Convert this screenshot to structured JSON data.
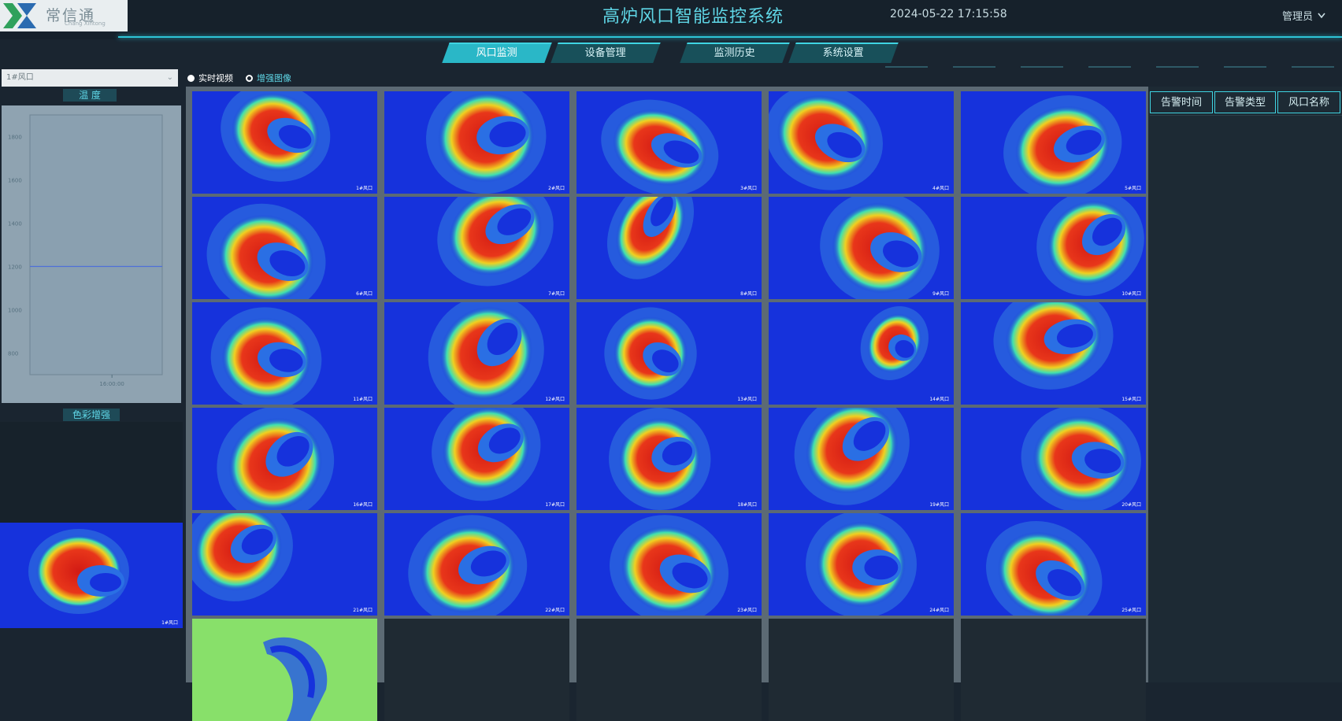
{
  "app": {
    "logo_text": "常信通",
    "logo_subtext": "Chang Xintong",
    "title": "高炉风口智能监控系统",
    "datetime": "2024-05-22 17:15:58",
    "user": "管理员"
  },
  "nav": {
    "tabs": [
      {
        "label": "风口监测",
        "active": true
      },
      {
        "label": "设备管理",
        "active": false
      },
      {
        "label": "监测历史",
        "active": false
      },
      {
        "label": "系统设置",
        "active": false
      }
    ]
  },
  "controls": {
    "tuyere_select_value": "1#风口",
    "radio_realtime_label": "实时视频",
    "radio_enhanced_label": "增强图像",
    "selected_radio": "enhanced"
  },
  "left_panel": {
    "temperature_title": "温 度",
    "color_enhance_title": "色彩增强"
  },
  "chart_data": {
    "type": "line",
    "title": "",
    "xlabel": "",
    "ylabel": "",
    "y_ticks": [
      "1800",
      "1600",
      "1400",
      "1200",
      "1000",
      "800"
    ],
    "x_ticks": [
      "16:00:00"
    ],
    "ylim": [
      700,
      1900
    ],
    "series": [
      {
        "values": [
          1200,
          1200
        ]
      }
    ],
    "grid": false
  },
  "enhanced_preview": {
    "label": "1#风口"
  },
  "grid": {
    "cells": [
      {
        "label": "1#风口"
      },
      {
        "label": "2#风口"
      },
      {
        "label": "3#风口"
      },
      {
        "label": "4#风口"
      },
      {
        "label": "5#风口"
      },
      {
        "label": "6#风口"
      },
      {
        "label": "7#风口"
      },
      {
        "label": "8#风口"
      },
      {
        "label": "9#风口"
      },
      {
        "label": "10#风口"
      },
      {
        "label": "11#风口"
      },
      {
        "label": "12#风口"
      },
      {
        "label": "13#风口"
      },
      {
        "label": "14#风口"
      },
      {
        "label": "15#风口"
      },
      {
        "label": "16#风口"
      },
      {
        "label": "17#风口"
      },
      {
        "label": "18#风口"
      },
      {
        "label": "19#风口"
      },
      {
        "label": "20#风口"
      },
      {
        "label": "21#风口"
      },
      {
        "label": "22#风口"
      },
      {
        "label": "23#风口"
      },
      {
        "label": "24#风口"
      },
      {
        "label": "25#风口"
      },
      {
        "label": ""
      }
    ]
  },
  "alarm_table": {
    "headers": [
      "告警时间",
      "告警类型",
      "风口名称"
    ]
  },
  "colors": {
    "accent": "#2ec4d6",
    "thermal_hot": "#d21a14",
    "thermal_cold": "#1530d8",
    "background": "#1a2530"
  }
}
